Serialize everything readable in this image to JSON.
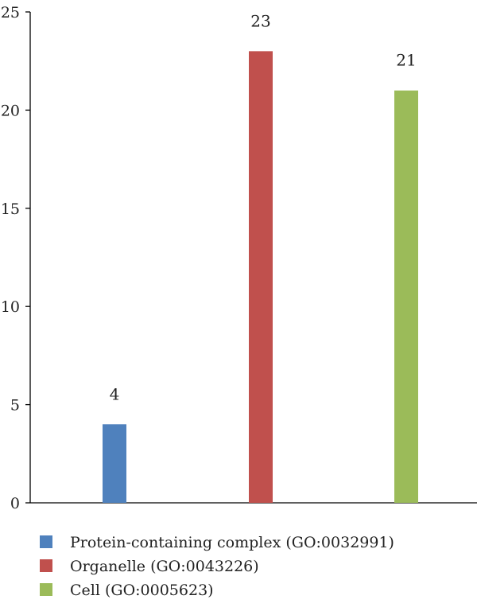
{
  "chart_data": {
    "type": "bar",
    "categories": [
      "Protein-containing complex (GO:0032991)",
      "Organelle (GO:0043226)",
      "Cell (GO:0005623)"
    ],
    "values": [
      4,
      23,
      21
    ],
    "data_labels": [
      "4",
      "23",
      "21"
    ],
    "colors": [
      "#4f81bd",
      "#c0504d",
      "#9bbb59"
    ],
    "title": "",
    "xlabel": "",
    "ylabel": "",
    "ylim": [
      0,
      25
    ],
    "yticks": [
      0,
      5,
      10,
      15,
      20,
      25
    ],
    "grid": false,
    "legend": {
      "position": "bottom-left",
      "entries": [
        "Protein-containing complex (GO:0032991)",
        "Organelle (GO:0043226)",
        "Cell (GO:0005623)"
      ]
    }
  }
}
